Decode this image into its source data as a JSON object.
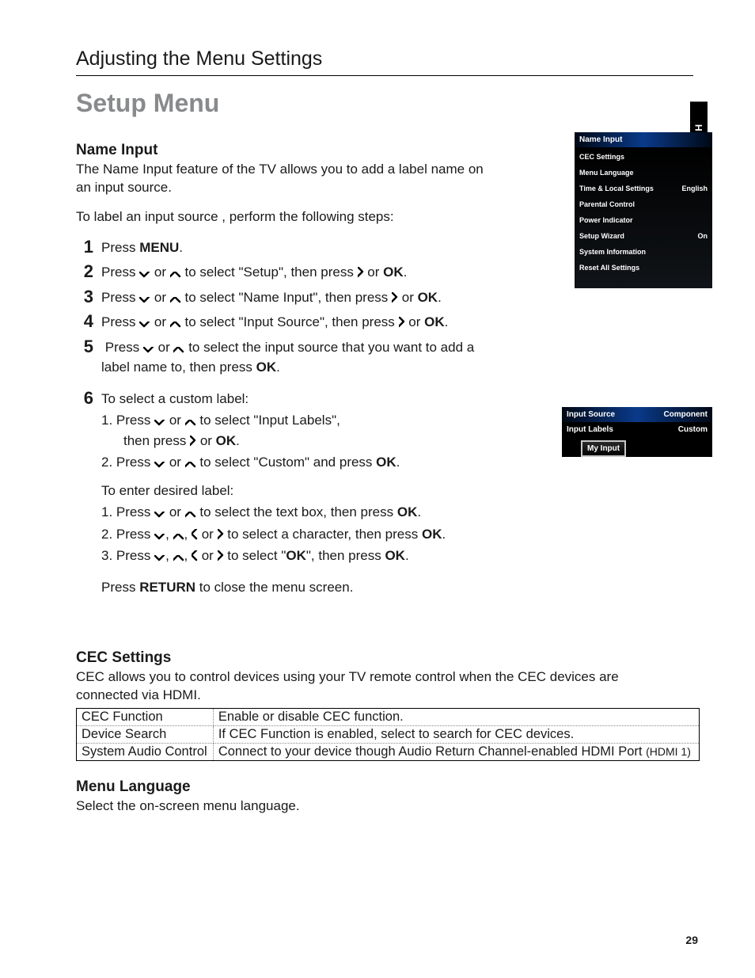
{
  "side_tab": "ENGLISH",
  "breadcrumb": "Adjusting the Menu Settings",
  "section_title": "Setup Menu",
  "name_input": {
    "heading": "Name Input",
    "intro": "The Name Input feature of the TV allows you to add a label name on an input source.",
    "lead": "To label an input source , perform the following steps:",
    "s1_a": "Press ",
    "s1_menu": "MENU",
    "s2_a": "Press ",
    "s2_b": " or ",
    "s2_c": " to select \"Setup\", then press ",
    "s2_d": " or ",
    "s2_ok": "OK",
    "s3_a": "Press ",
    "s3_b": " or ",
    "s3_c": " to select \"Name Input\", then press ",
    "s3_d": " or ",
    "s3_ok": "OK",
    "s4_a": "Press ",
    "s4_b": " or ",
    "s4_c": "  to select \"Input Source\", then press ",
    "s4_d": " or ",
    "s4_ok": "OK",
    "s5_a": "Press ",
    "s5_b": " or ",
    "s5_c": "  to select the input source that you want to add a label name to, then press ",
    "s5_ok": "OK",
    "s6_a": "To select a custom label:",
    "s6_1a": "1. Press ",
    "s6_1b": " or ",
    "s6_1c": "  to select \"Input Labels\",",
    "s6_1d": "then press ",
    "s6_1e": " or ",
    "s6_1ok": "OK",
    "s6_2a": "2. Press ",
    "s6_2b": " or ",
    "s6_2c": "  to select \"Custom\" and press ",
    "s6_2ok": "OK",
    "s6_enter": "To enter desired label:",
    "s6_e1a": "1. Press ",
    "s6_e1b": " or ",
    "s6_e1c": "  to select the text box, then press ",
    "s6_e1ok": "OK",
    "s6_e2a": "2. Press ",
    "s6_e2b": ",  ",
    "s6_e2c": ", ",
    "s6_e2d": " or ",
    "s6_e2e": " to select a character, then press ",
    "s6_e2ok": "OK",
    "s6_e3a": "3. Press ",
    "s6_e3b": ",  ",
    "s6_e3c": ", ",
    "s6_e3d": " or ",
    "s6_e3e": " to select \"",
    "s6_e3ok1": "OK",
    "s6_e3f": "\", then press ",
    "s6_e3ok2": "OK",
    "s6_return_a": "Press ",
    "s6_return": "RETURN",
    "s6_return_b": " to close the menu screen."
  },
  "menu_panel": {
    "header": "Name Input",
    "rows": [
      {
        "l": "CEC Settings",
        "r": ""
      },
      {
        "l": "Menu Language",
        "r": ""
      },
      {
        "l": "Time & Local Settings",
        "r": "English"
      },
      {
        "l": "Parental Control",
        "r": ""
      },
      {
        "l": "Power Indicator",
        "r": ""
      },
      {
        "l": "Setup Wizard",
        "r": "On"
      },
      {
        "l": "System Information",
        "r": ""
      },
      {
        "l": "Reset All Settings",
        "r": ""
      }
    ]
  },
  "panel2": {
    "rows": [
      {
        "l": "Input Source",
        "r": "Component",
        "hl": true
      },
      {
        "l": "Input Labels",
        "r": "Custom",
        "hl": false
      }
    ],
    "input": "My Input"
  },
  "cec": {
    "heading": "CEC Settings",
    "intro": "CEC allows you to control devices using your TV remote control when the CEC devices are connected via HDMI.",
    "rows": [
      {
        "l": "CEC Function",
        "r": "Enable or disable CEC function.",
        "small": ""
      },
      {
        "l": "Device Search",
        "r": "If CEC Function is enabled, select to search for CEC devices.",
        "small": ""
      },
      {
        "l": "System Audio Control",
        "r": "Connect to your device though Audio Return Channel-enabled HDMI Port ",
        "small": "(HDMI 1)"
      }
    ]
  },
  "menu_lang": {
    "heading": "Menu Language",
    "body": "Select the on-screen menu language."
  },
  "page_num": "29"
}
